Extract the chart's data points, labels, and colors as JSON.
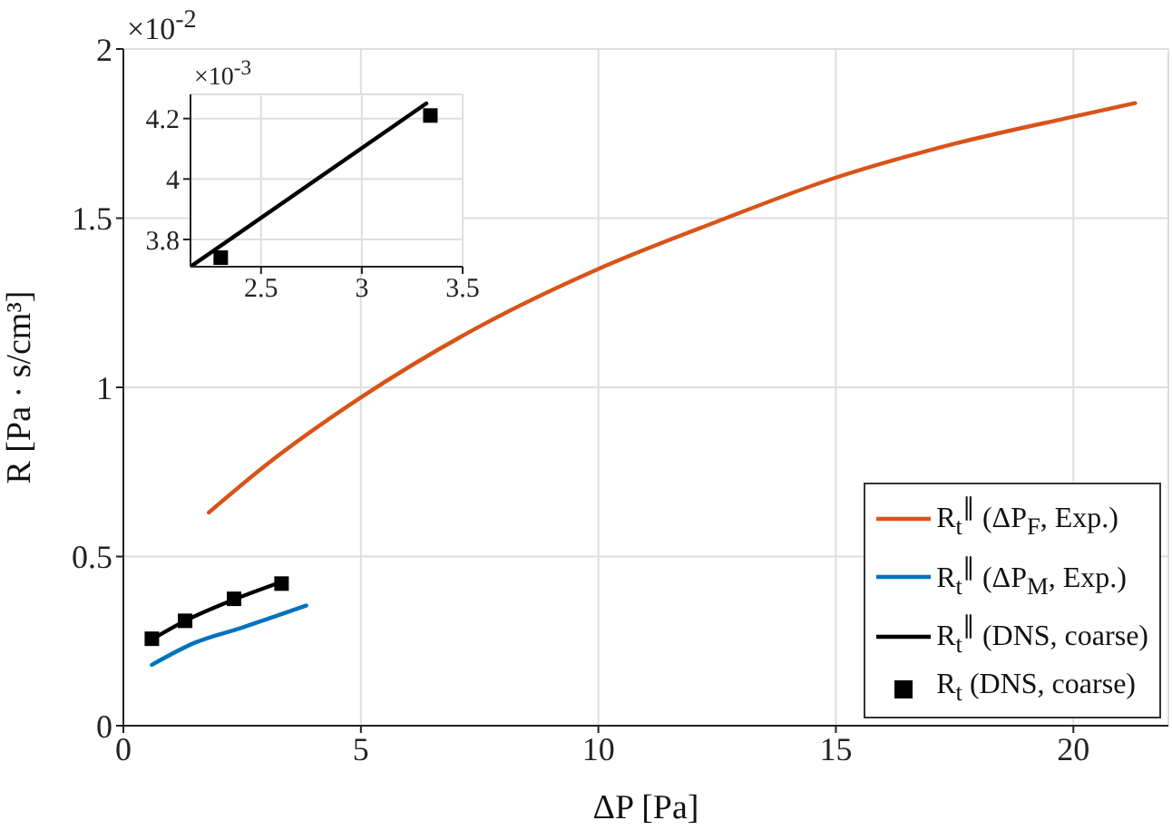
{
  "chart_data": [
    {
      "type": "line",
      "xlabel": "ΔP [Pa]",
      "ylabel": "R [Pa · s/cm³]",
      "annotations": [
        "×10$^{-2}$"
      ],
      "xlim": [
        0,
        22
      ],
      "ylim": [
        0,
        2
      ],
      "xticks": [
        0,
        5,
        10,
        15,
        20
      ],
      "yticks": [
        0,
        0.5,
        1,
        1.5,
        2
      ],
      "grid": true,
      "legend": "bottom right",
      "series": [
        {
          "name": "R$_{t}$$^{∥}$ (ΔP$_{F}$, Exp.)",
          "color": "#d95319",
          "x": [
            1.8,
            3,
            5,
            7.5,
            10,
            12.5,
            15,
            17.5,
            20,
            21.3
          ],
          "values": [
            0.63,
            0.77,
            0.97,
            1.18,
            1.35,
            1.49,
            1.62,
            1.72,
            1.8,
            1.84
          ]
        },
        {
          "name": "R$_{t}$$^{∥}$ (ΔP$_{M}$, Exp.)",
          "color": "#0072bd",
          "x": [
            0.6,
            1.5,
            2.5,
            3.85
          ],
          "values": [
            0.18,
            0.245,
            0.29,
            0.355
          ]
        },
        {
          "name": "R$_{t}$$^{∥}$ (DNS, coarse)",
          "color": "#000000",
          "x": [
            0.6,
            1.3,
            2.33,
            3.33
          ],
          "values": [
            0.255,
            0.31,
            0.373,
            0.425
          ]
        },
        {
          "name": "R$_{t}$ (DNS, coarse)",
          "type": "scatter",
          "marker": "square",
          "color": "#000000",
          "x": [
            0.6,
            1.3,
            2.33,
            3.33
          ],
          "values": [
            0.257,
            0.31,
            0.375,
            0.42
          ]
        }
      ]
    },
    {
      "type": "line",
      "annotations": [
        "×10$^{-3}$"
      ],
      "xlim": [
        2.15,
        3.5
      ],
      "ylim": [
        3.71,
        4.28
      ],
      "xticks": [
        2.5,
        3,
        3.5
      ],
      "yticks": [
        3.8,
        4,
        4.2
      ],
      "grid": true,
      "series": [
        {
          "color": "#000000",
          "x": [
            2.15,
            3.32
          ],
          "values": [
            3.71,
            4.25
          ]
        },
        {
          "type": "scatter",
          "marker": "square",
          "color": "#000000",
          "x": [
            2.3,
            3.34
          ],
          "values": [
            3.74,
            4.21
          ]
        }
      ]
    }
  ]
}
